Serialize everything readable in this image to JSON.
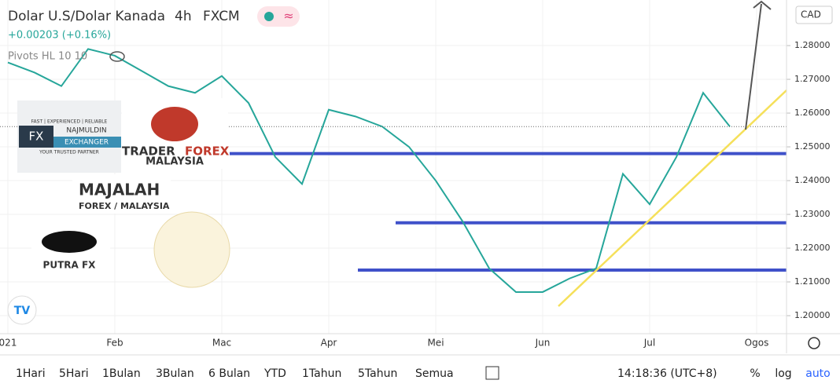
{
  "header": {
    "title": "Dolar U.S/Dolar Kanada",
    "interval": "4h",
    "source": "FXCM",
    "change": "+0.00203 (+0.16%)",
    "indicator": "Pivots HL 10 10",
    "currency": "CAD"
  },
  "logos": {
    "fx_tagline": "FAST | EXPERIENCED | RELIABLE",
    "fx_mark": "FX",
    "fx_name": "NAJMULDIN",
    "fx_name2": "EXCHANGER",
    "fx_slogan": "YOUR TRUSTED PARTNER",
    "tf_1": "TRADER",
    "tf_2": "FOREX",
    "tf_3": "MALAYSIA",
    "mj_1": "MAJALAH",
    "mj_2": "FOREX / MALAYSIA",
    "putra": "PUTRA FX"
  },
  "toolbar": {
    "ranges": [
      "1Hari",
      "5Hari",
      "1Bulan",
      "3Bulan",
      "6 Bulan",
      "YTD",
      "1Tahun",
      "5Tahun",
      "Semua"
    ],
    "time": "14:18:36 (UTC+8)",
    "percent": "%",
    "log": "log",
    "auto": "auto"
  },
  "chart_data": {
    "type": "line",
    "categories": [
      "021",
      null,
      null,
      null,
      "Feb",
      null,
      null,
      null,
      "Mac",
      null,
      null,
      null,
      "Apr",
      null,
      null,
      null,
      "Mei",
      null,
      null,
      null,
      "Jun",
      null,
      null,
      null,
      "Jul",
      null,
      null,
      null,
      "Ogos"
    ],
    "values": [
      1.275,
      1.272,
      1.268,
      1.279,
      1.277,
      1.2725,
      1.268,
      1.266,
      1.271,
      1.263,
      1.247,
      1.239,
      1.261,
      1.259,
      1.256,
      1.25,
      1.24,
      1.228,
      1.214,
      1.207,
      1.207,
      1.211,
      1.214,
      1.242,
      1.233,
      1.247,
      1.266,
      1.256,
      null
    ],
    "color": "#26a69a",
    "levels": [
      1.248,
      1.2275,
      1.2135
    ],
    "level_color": "#3f51c9",
    "ylim": [
      1.1935,
      1.2935
    ],
    "yticks": [
      {
        "value": 1.2,
        "label": "1.20000"
      },
      {
        "value": 1.21,
        "label": "1.21000"
      },
      {
        "value": 1.22,
        "label": "1.22000"
      },
      {
        "value": 1.23,
        "label": "1.23000"
      },
      {
        "value": 1.24,
        "label": "1.24000"
      },
      {
        "value": 1.25,
        "label": "1.25000"
      },
      {
        "value": 1.26,
        "label": "1.26000"
      },
      {
        "value": 1.27,
        "label": "1.27000"
      },
      {
        "value": 1.28,
        "label": "1.28000"
      }
    ],
    "grid": true
  }
}
